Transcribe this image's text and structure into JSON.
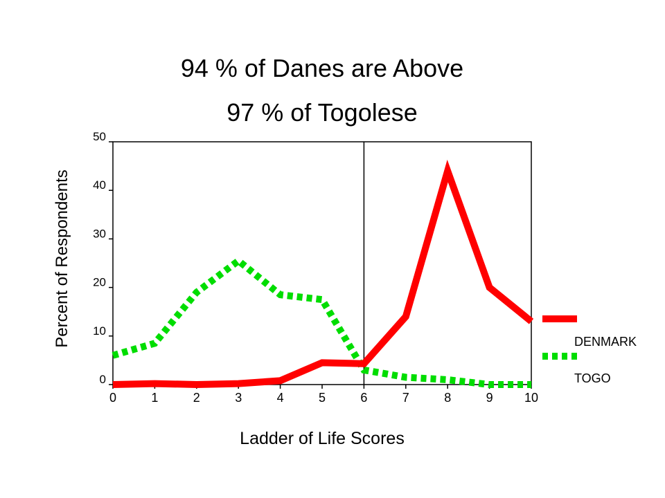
{
  "chart_data": {
    "type": "line",
    "title": [
      "94 % of Danes are Above",
      "97 % of Togolese"
    ],
    "xlabel": "Ladder of Life Scores",
    "ylabel": "Percent of Respondents",
    "x": [
      0,
      1,
      2,
      3,
      4,
      5,
      6,
      7,
      8,
      9,
      10
    ],
    "xlim": [
      0,
      10
    ],
    "ylim": [
      0,
      50
    ],
    "xticks": [
      "0",
      "1",
      "2",
      "3",
      "4",
      "5",
      "6",
      "7",
      "8",
      "9",
      "10"
    ],
    "yticks": [
      "0",
      "10",
      "20",
      "30",
      "40",
      "50"
    ],
    "reference_line_x": 6,
    "grid": false,
    "legend_position": "right",
    "series": [
      {
        "name": "DENMARK",
        "color": "#ff0000",
        "style": "solid",
        "values": [
          0,
          0.2,
          0,
          0.2,
          0.8,
          4.5,
          4.3,
          14,
          44,
          20,
          13
        ]
      },
      {
        "name": "TOGO",
        "color": "#00dd00",
        "style": "dotted",
        "values": [
          6,
          8.5,
          19,
          25.5,
          18.5,
          17.5,
          3,
          1.5,
          1,
          0,
          0
        ]
      }
    ]
  }
}
